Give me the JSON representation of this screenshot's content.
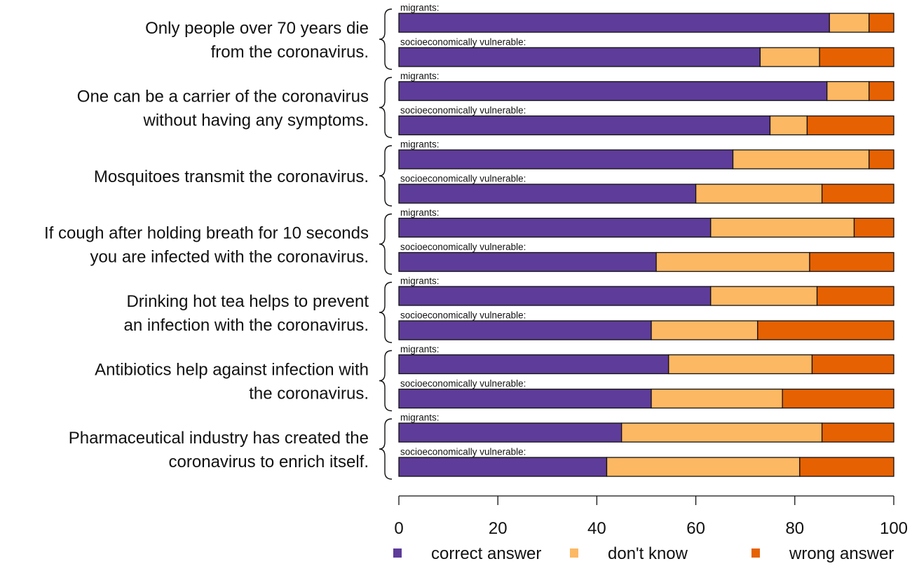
{
  "chart_data": {
    "type": "bar",
    "orientation": "horizontal",
    "stacked": true,
    "xlim": [
      0,
      100
    ],
    "x_ticks": [
      0,
      20,
      40,
      60,
      80,
      100
    ],
    "x_tick_labels": [
      "0",
      "20",
      "40",
      "60",
      "80",
      "100"
    ],
    "groups": [
      "migrants:",
      "socioeconomically vulnerable:"
    ],
    "legend_position": "bottom",
    "series": [
      {
        "name": "correct answer",
        "color": "#5e3c99"
      },
      {
        "name": "don't know",
        "color": "#fdb863"
      },
      {
        "name": "wrong answer",
        "color": "#e66101"
      }
    ],
    "statements": [
      {
        "lines": [
          "Only people over 70 years die",
          "from the coronavirus."
        ],
        "bars": [
          {
            "group": "migrants:",
            "values": [
              87,
              8,
              5
            ]
          },
          {
            "group": "socioeconomically vulnerable:",
            "values": [
              73,
              12,
              15
            ]
          }
        ]
      },
      {
        "lines": [
          "One can be a carrier of the coronavirus",
          "without having any symptoms."
        ],
        "bars": [
          {
            "group": "migrants:",
            "values": [
              86.5,
              8.5,
              5
            ]
          },
          {
            "group": "socioeconomically vulnerable:",
            "values": [
              75,
              7.5,
              17.5
            ]
          }
        ]
      },
      {
        "lines": [
          "Mosquitoes transmit the coronavirus."
        ],
        "bars": [
          {
            "group": "migrants:",
            "values": [
              67.5,
              27.5,
              5
            ]
          },
          {
            "group": "socioeconomically vulnerable:",
            "values": [
              60,
              25.5,
              14.5
            ]
          }
        ]
      },
      {
        "lines": [
          "If cough after holding breath for 10 seconds",
          "you are infected with the coronavirus."
        ],
        "bars": [
          {
            "group": "migrants:",
            "values": [
              63,
              29,
              8
            ]
          },
          {
            "group": "socioeconomically vulnerable:",
            "values": [
              52,
              31,
              17
            ]
          }
        ]
      },
      {
        "lines": [
          "Drinking hot tea helps to prevent",
          "an infection with the coronavirus."
        ],
        "bars": [
          {
            "group": "migrants:",
            "values": [
              63,
              21.5,
              15.5
            ]
          },
          {
            "group": "socioeconomically vulnerable:",
            "values": [
              51,
              21.5,
              27.5
            ]
          }
        ]
      },
      {
        "lines": [
          "Antibiotics help against infection with",
          "the coronavirus."
        ],
        "bars": [
          {
            "group": "migrants:",
            "values": [
              54.5,
              29,
              16.5
            ]
          },
          {
            "group": "socioeconomically vulnerable:",
            "values": [
              51,
              26.5,
              22.5
            ]
          }
        ]
      },
      {
        "lines": [
          "Pharmaceutical industry has created the",
          "coronavirus to enrich itself."
        ],
        "bars": [
          {
            "group": "migrants:",
            "values": [
              45,
              40.5,
              14.5
            ]
          },
          {
            "group": "socioeconomically vulnerable:",
            "values": [
              42,
              39,
              19
            ]
          }
        ]
      }
    ]
  }
}
